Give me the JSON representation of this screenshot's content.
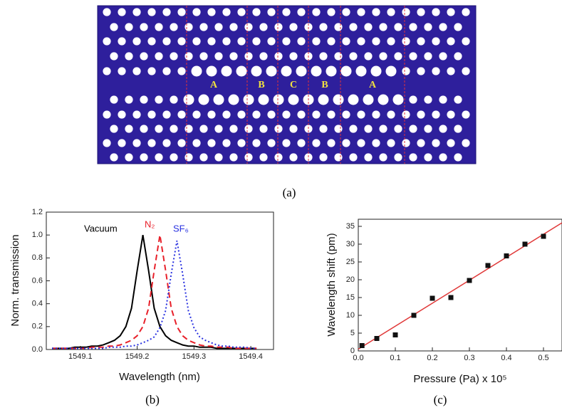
{
  "diagram": {
    "region_labels": [
      "A",
      "B",
      "C",
      "B",
      "A"
    ],
    "caption": "(a)"
  },
  "chart_data": [
    {
      "type": "line",
      "caption": "(b)",
      "x_label": "Wavelength (nm)",
      "y_label": "Norm. transmission",
      "xlim": [
        1549.04,
        1549.44
      ],
      "xticks": [
        1549.1,
        1549.2,
        1549.3,
        1549.4
      ],
      "ylim": [
        0,
        1.2
      ],
      "yticks": [
        {
          "value": 0,
          "label": "0.0"
        },
        0.2,
        0.4,
        0.6,
        0.8,
        {
          "value": 1,
          "label": "1.0"
        },
        1.2
      ],
      "x": [
        1549.05,
        1549.06,
        1549.07,
        1549.08,
        1549.09,
        1549.1,
        1549.11,
        1549.12,
        1549.13,
        1549.14,
        1549.15,
        1549.16,
        1549.17,
        1549.18,
        1549.19,
        1549.2,
        1549.21,
        1549.22,
        1549.23,
        1549.24,
        1549.25,
        1549.26,
        1549.27,
        1549.28,
        1549.29,
        1549.3,
        1549.31,
        1549.32,
        1549.33,
        1549.34,
        1549.35,
        1549.36,
        1549.37,
        1549.38,
        1549.39,
        1549.4,
        1549.41
      ],
      "series": [
        {
          "name": "Vacuum",
          "color": "#000000",
          "dash": "none",
          "values": [
            0.01,
            0.01,
            0.01,
            0.01,
            0.02,
            0.02,
            0.02,
            0.03,
            0.03,
            0.04,
            0.06,
            0.08,
            0.12,
            0.2,
            0.36,
            0.69,
            1.0,
            0.69,
            0.36,
            0.2,
            0.12,
            0.08,
            0.06,
            0.04,
            0.03,
            0.03,
            0.02,
            0.02,
            0.02,
            0.01,
            0.01,
            0.01,
            0.01,
            0.01,
            0.01,
            0.01,
            0.01
          ]
        },
        {
          "name": "N₂",
          "color": "#e8202a",
          "dash": "8,5",
          "values": [
            0.01,
            0.01,
            0.01,
            0.01,
            0.01,
            0.01,
            0.01,
            0.02,
            0.02,
            0.02,
            0.03,
            0.03,
            0.04,
            0.06,
            0.08,
            0.12,
            0.2,
            0.36,
            0.69,
            1.0,
            0.69,
            0.36,
            0.2,
            0.12,
            0.08,
            0.06,
            0.04,
            0.03,
            0.03,
            0.02,
            0.02,
            0.02,
            0.01,
            0.01,
            0.01,
            0.01,
            0.01
          ]
        },
        {
          "name": "SF₆",
          "color": "#2830e0",
          "dash": "2,3",
          "values": [
            0.01,
            0.01,
            0.01,
            0.01,
            0.01,
            0.01,
            0.01,
            0.01,
            0.01,
            0.01,
            0.02,
            0.02,
            0.02,
            0.03,
            0.03,
            0.04,
            0.06,
            0.08,
            0.11,
            0.19,
            0.34,
            0.66,
            0.95,
            0.66,
            0.34,
            0.19,
            0.11,
            0.08,
            0.06,
            0.04,
            0.03,
            0.03,
            0.02,
            0.02,
            0.02,
            0.01,
            0.01
          ]
        }
      ]
    },
    {
      "type": "scatter",
      "caption": "(c)",
      "x_label": "Pressure (Pa) x 10⁵",
      "y_label": "Wavelength shift (pm)",
      "xlim": [
        0,
        0.55
      ],
      "xticks": [
        {
          "value": 0,
          "label": "0.0"
        },
        0.1,
        0.2,
        0.3,
        0.4,
        0.5
      ],
      "ylim": [
        0,
        37
      ],
      "yticks": [
        0,
        5,
        10,
        15,
        20,
        25,
        30,
        35
      ],
      "x": [
        0.01,
        0.05,
        0.1,
        0.15,
        0.2,
        0.25,
        0.3,
        0.35,
        0.4,
        0.45,
        0.5
      ],
      "values": [
        1.5,
        3.5,
        4.5,
        10,
        14.8,
        15,
        19.8,
        24,
        26.7,
        30,
        32.2
      ],
      "color": "#111111",
      "fit": {
        "x": [
          0,
          0.55
        ],
        "values": [
          0.5,
          36
        ],
        "color": "#e03838"
      }
    }
  ]
}
